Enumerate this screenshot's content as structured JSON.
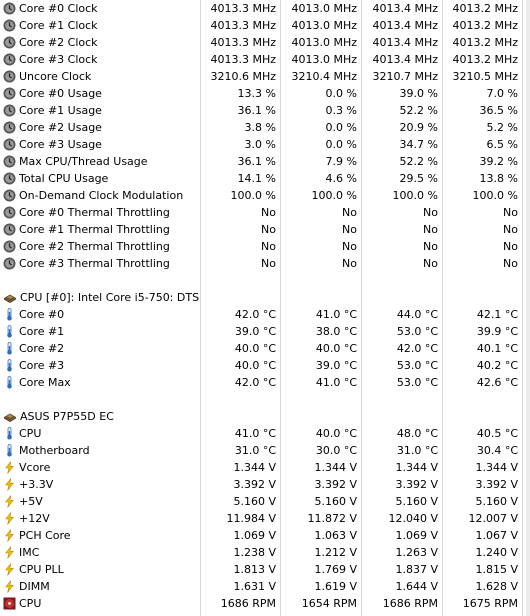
{
  "rows": [
    {
      "type": "item",
      "icon": "clock-icon",
      "label": "Core #0 Clock",
      "values": [
        "4013.3 MHz",
        "4013.0 MHz",
        "4013.4 MHz",
        "4013.2 MHz"
      ]
    },
    {
      "type": "item",
      "icon": "clock-icon",
      "label": "Core #1 Clock",
      "values": [
        "4013.3 MHz",
        "4013.0 MHz",
        "4013.4 MHz",
        "4013.2 MHz"
      ]
    },
    {
      "type": "item",
      "icon": "clock-icon",
      "label": "Core #2 Clock",
      "values": [
        "4013.3 MHz",
        "4013.0 MHz",
        "4013.4 MHz",
        "4013.2 MHz"
      ]
    },
    {
      "type": "item",
      "icon": "clock-icon",
      "label": "Core #3 Clock",
      "values": [
        "4013.3 MHz",
        "4013.0 MHz",
        "4013.4 MHz",
        "4013.2 MHz"
      ]
    },
    {
      "type": "item",
      "icon": "clock-icon",
      "label": "Uncore Clock",
      "values": [
        "3210.6 MHz",
        "3210.4 MHz",
        "3210.7 MHz",
        "3210.5 MHz"
      ]
    },
    {
      "type": "item",
      "icon": "clock-icon",
      "label": "Core #0 Usage",
      "values": [
        "13.3 %",
        "0.0 %",
        "39.0 %",
        "7.0 %"
      ]
    },
    {
      "type": "item",
      "icon": "clock-icon",
      "label": "Core #1 Usage",
      "values": [
        "36.1 %",
        "0.3 %",
        "52.2 %",
        "36.5 %"
      ]
    },
    {
      "type": "item",
      "icon": "clock-icon",
      "label": "Core #2 Usage",
      "values": [
        "3.8 %",
        "0.0 %",
        "20.9 %",
        "5.2 %"
      ]
    },
    {
      "type": "item",
      "icon": "clock-icon",
      "label": "Core #3 Usage",
      "values": [
        "3.0 %",
        "0.0 %",
        "34.7 %",
        "6.5 %"
      ]
    },
    {
      "type": "item",
      "icon": "clock-icon",
      "label": "Max CPU/Thread Usage",
      "values": [
        "36.1 %",
        "7.9 %",
        "52.2 %",
        "39.2 %"
      ]
    },
    {
      "type": "item",
      "icon": "clock-icon",
      "label": "Total CPU Usage",
      "values": [
        "14.1 %",
        "4.6 %",
        "29.5 %",
        "13.8 %"
      ]
    },
    {
      "type": "item",
      "icon": "clock-icon",
      "label": "On-Demand Clock Modulation",
      "values": [
        "100.0 %",
        "100.0 %",
        "100.0 %",
        "100.0 %"
      ]
    },
    {
      "type": "item",
      "icon": "clock-icon",
      "label": "Core #0 Thermal Throttling",
      "values": [
        "No",
        "No",
        "No",
        "No"
      ]
    },
    {
      "type": "item",
      "icon": "clock-icon",
      "label": "Core #1 Thermal Throttling",
      "values": [
        "No",
        "No",
        "No",
        "No"
      ]
    },
    {
      "type": "item",
      "icon": "clock-icon",
      "label": "Core #2 Thermal Throttling",
      "values": [
        "No",
        "No",
        "No",
        "No"
      ]
    },
    {
      "type": "item",
      "icon": "clock-icon",
      "label": "Core #3 Thermal Throttling",
      "values": [
        "No",
        "No",
        "No",
        "No"
      ]
    },
    {
      "type": "blank"
    },
    {
      "type": "group",
      "icon": "chip-icon",
      "label": "CPU [#0]: Intel Core i5-750: DTS"
    },
    {
      "type": "item",
      "icon": "thermometer-icon",
      "label": "Core #0",
      "values": [
        "42.0 °C",
        "41.0 °C",
        "44.0 °C",
        "42.1 °C"
      ]
    },
    {
      "type": "item",
      "icon": "thermometer-icon",
      "label": "Core #1",
      "values": [
        "39.0 °C",
        "38.0 °C",
        "53.0 °C",
        "39.9 °C"
      ]
    },
    {
      "type": "item",
      "icon": "thermometer-icon",
      "label": "Core #2",
      "values": [
        "40.0 °C",
        "40.0 °C",
        "42.0 °C",
        "40.1 °C"
      ]
    },
    {
      "type": "item",
      "icon": "thermometer-icon",
      "label": "Core #3",
      "values": [
        "40.0 °C",
        "39.0 °C",
        "53.0 °C",
        "40.2 °C"
      ]
    },
    {
      "type": "item",
      "icon": "thermometer-icon",
      "label": "Core Max",
      "values": [
        "42.0 °C",
        "41.0 °C",
        "53.0 °C",
        "42.6 °C"
      ]
    },
    {
      "type": "blank"
    },
    {
      "type": "group",
      "icon": "chip-icon",
      "label": "ASUS P7P55D EC"
    },
    {
      "type": "item",
      "icon": "thermometer-icon",
      "label": "CPU",
      "values": [
        "41.0 °C",
        "40.0 °C",
        "48.0 °C",
        "40.5 °C"
      ]
    },
    {
      "type": "item",
      "icon": "thermometer-icon",
      "label": "Motherboard",
      "values": [
        "31.0 °C",
        "30.0 °C",
        "31.0 °C",
        "30.4 °C"
      ]
    },
    {
      "type": "item",
      "icon": "lightning-icon",
      "label": "Vcore",
      "values": [
        "1.344 V",
        "1.344 V",
        "1.344 V",
        "1.344 V"
      ]
    },
    {
      "type": "item",
      "icon": "lightning-icon",
      "label": "+3.3V",
      "values": [
        "3.392 V",
        "3.392 V",
        "3.392 V",
        "3.392 V"
      ]
    },
    {
      "type": "item",
      "icon": "lightning-icon",
      "label": "+5V",
      "values": [
        "5.160 V",
        "5.160 V",
        "5.160 V",
        "5.160 V"
      ]
    },
    {
      "type": "item",
      "icon": "lightning-icon",
      "label": "+12V",
      "values": [
        "11.984 V",
        "11.872 V",
        "12.040 V",
        "12.007 V"
      ]
    },
    {
      "type": "item",
      "icon": "lightning-icon",
      "label": "PCH Core",
      "values": [
        "1.069 V",
        "1.063 V",
        "1.069 V",
        "1.067 V"
      ]
    },
    {
      "type": "item",
      "icon": "lightning-icon",
      "label": "IMC",
      "values": [
        "1.238 V",
        "1.212 V",
        "1.263 V",
        "1.240 V"
      ]
    },
    {
      "type": "item",
      "icon": "lightning-icon",
      "label": "CPU PLL",
      "values": [
        "1.813 V",
        "1.769 V",
        "1.837 V",
        "1.815 V"
      ]
    },
    {
      "type": "item",
      "icon": "lightning-icon",
      "label": "DIMM",
      "values": [
        "1.631 V",
        "1.619 V",
        "1.644 V",
        "1.628 V"
      ]
    },
    {
      "type": "item",
      "icon": "fan-icon",
      "label": "CPU",
      "values": [
        "1686 RPM",
        "1654 RPM",
        "1686 RPM",
        "1675 RPM"
      ]
    }
  ],
  "colors": {
    "clock": "#6a6a6a",
    "thermometer": "#3a78c8",
    "lightning": "#f0c000",
    "fan": "#b02020",
    "chip": "#8a6a3a",
    "grid": "#d8d8d8"
  }
}
